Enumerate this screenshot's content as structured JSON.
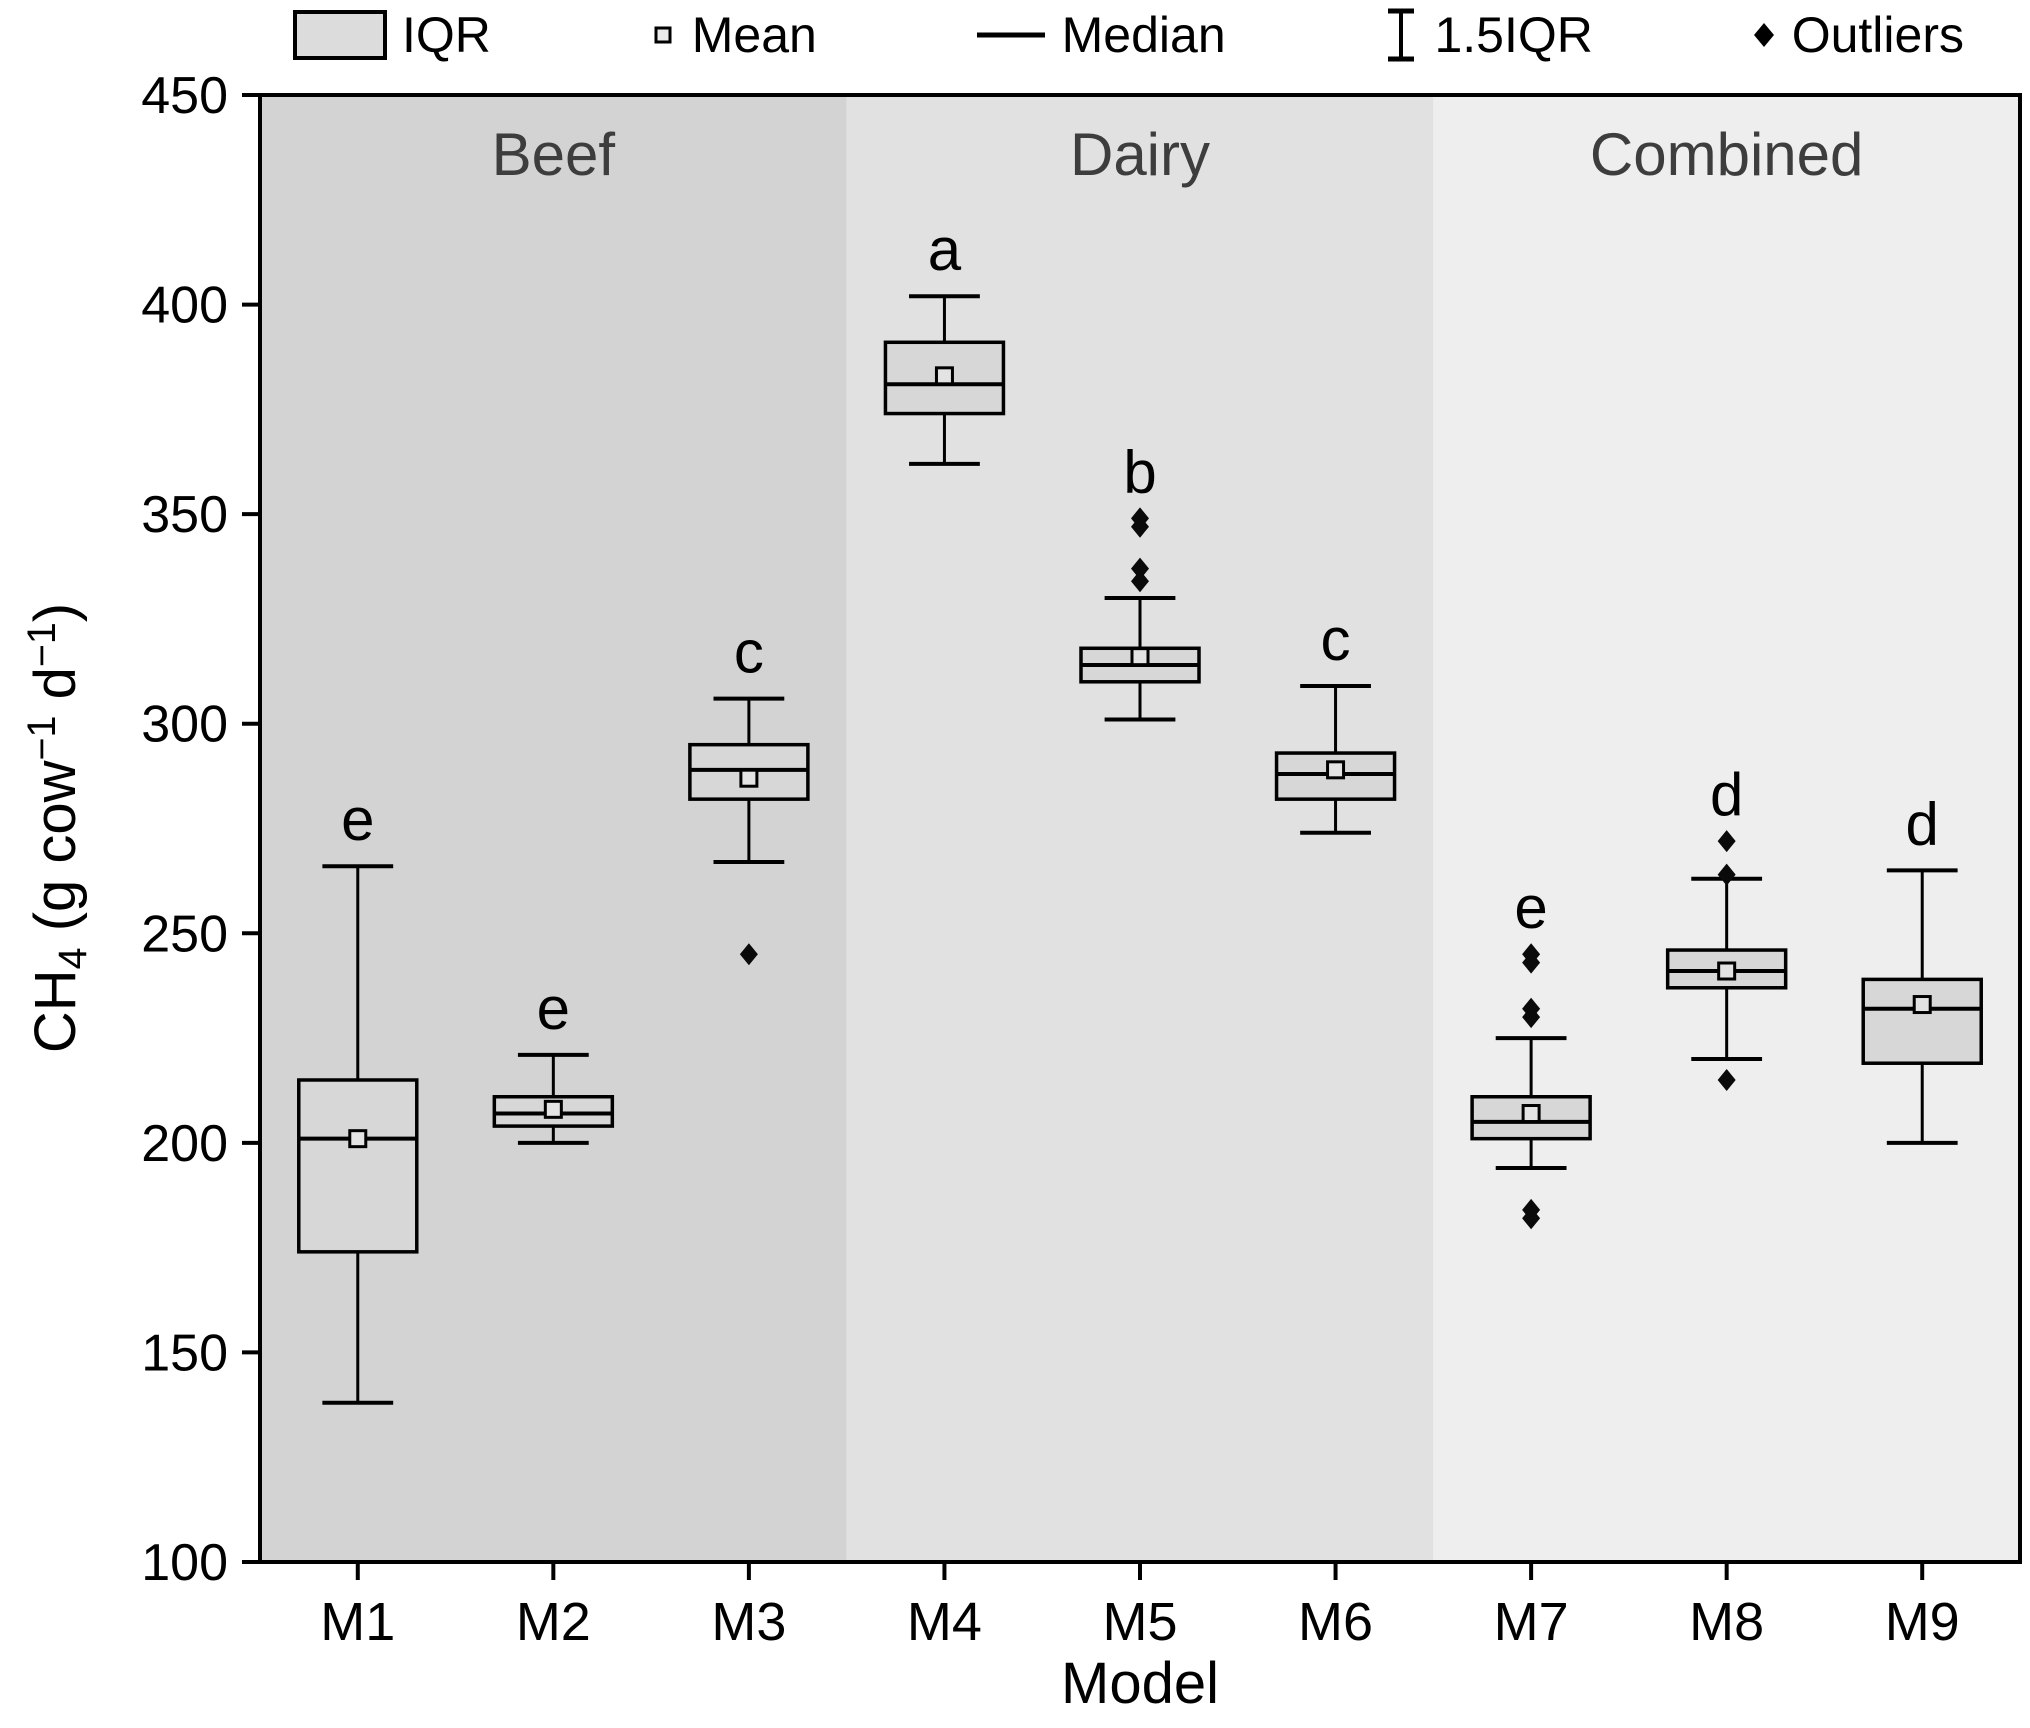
{
  "chart_data": {
    "type": "boxplot",
    "title": "",
    "xlabel": "Model",
    "ylabel_plain": "CH4 (g cow-1 d-1)",
    "ylabel_parts": [
      {
        "t": "CH",
        "s": "n"
      },
      {
        "t": "4",
        "s": "sub"
      },
      {
        "t": " (g cow",
        "s": "n"
      },
      {
        "t": "−1",
        "s": "sup"
      },
      {
        "t": " d",
        "s": "n"
      },
      {
        "t": "−1",
        "s": "sup"
      },
      {
        "t": ")",
        "s": "n"
      }
    ],
    "ylim": [
      100,
      450
    ],
    "yticks": [
      100,
      150,
      200,
      250,
      300,
      350,
      400,
      450
    ],
    "grid": false,
    "legend_position": "top",
    "legend": [
      {
        "label": "IQR",
        "marker": "box"
      },
      {
        "label": "Mean",
        "marker": "square"
      },
      {
        "label": "Median",
        "marker": "line"
      },
      {
        "label": "1.5IQR",
        "marker": "errorbar"
      },
      {
        "label": "Outliers",
        "marker": "diamond"
      }
    ],
    "groups": [
      {
        "name": "Beef",
        "models": [
          "M1",
          "M2",
          "M3"
        ],
        "bg": "#d3d3d3"
      },
      {
        "name": "Dairy",
        "models": [
          "M4",
          "M5",
          "M6"
        ],
        "bg": "#e1e1e1"
      },
      {
        "name": "Combined",
        "models": [
          "M7",
          "M8",
          "M9"
        ],
        "bg": "#eeeeee"
      }
    ],
    "boxes": [
      {
        "model": "M1",
        "letter": "e",
        "low": 138,
        "q1": 174,
        "median": 201,
        "q3": 215,
        "high": 266,
        "mean": 201,
        "outliers": []
      },
      {
        "model": "M2",
        "letter": "e",
        "low": 200,
        "q1": 204,
        "median": 207,
        "q3": 211,
        "high": 221,
        "mean": 208,
        "outliers": []
      },
      {
        "model": "M3",
        "letter": "c",
        "low": 267,
        "q1": 282,
        "median": 289,
        "q3": 295,
        "high": 306,
        "mean": 287,
        "outliers": [
          245
        ]
      },
      {
        "model": "M4",
        "letter": "a",
        "low": 362,
        "q1": 374,
        "median": 381,
        "q3": 391,
        "high": 402,
        "mean": 383,
        "outliers": []
      },
      {
        "model": "M5",
        "letter": "b",
        "low": 301,
        "q1": 310,
        "median": 314,
        "q3": 318,
        "high": 330,
        "mean": 316,
        "outliers": [
          349,
          347,
          337,
          334
        ]
      },
      {
        "model": "M6",
        "letter": "c",
        "low": 274,
        "q1": 282,
        "median": 288,
        "q3": 293,
        "high": 309,
        "mean": 289,
        "outliers": []
      },
      {
        "model": "M7",
        "letter": "e",
        "low": 194,
        "q1": 201,
        "median": 205,
        "q3": 211,
        "high": 225,
        "mean": 207,
        "outliers": [
          245,
          243,
          232,
          230,
          184,
          182
        ]
      },
      {
        "model": "M8",
        "letter": "d",
        "low": 220,
        "q1": 237,
        "median": 241,
        "q3": 246,
        "high": 263,
        "mean": 241,
        "outliers": [
          272,
          264,
          215
        ]
      },
      {
        "model": "M9",
        "letter": "d",
        "low": 200,
        "q1": 219,
        "median": 232,
        "q3": 239,
        "high": 265,
        "mean": 233,
        "outliers": []
      }
    ],
    "box_fill": "#d7d7d7",
    "stroke_color": "#000000"
  }
}
